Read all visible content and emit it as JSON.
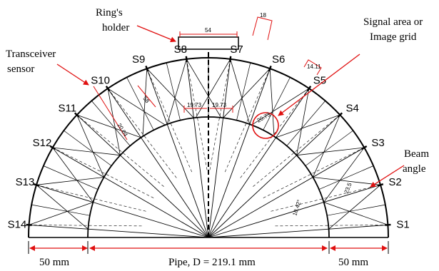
{
  "labels": {
    "rings_holder": [
      "Ring's",
      "holder"
    ],
    "transceiver": [
      "Transceiver",
      "sensor"
    ],
    "signal_area": [
      "Signal area or",
      "Image grid"
    ],
    "beam_angle": [
      "Beam",
      "angle"
    ],
    "left_dim": "50 mm",
    "pipe_dim": "Pipe, D = 219.1 mm",
    "right_dim": "50 mm"
  },
  "sensors": [
    "S1",
    "S2",
    "S3",
    "S4",
    "S5",
    "S6",
    "S7",
    "S8",
    "S9",
    "S10",
    "S11",
    "S12",
    "S13",
    "S14"
  ],
  "dimensions": {
    "top_width": "54",
    "s7_width": "18",
    "s6_width": "14.11",
    "left_chord": "19.73",
    "right_chord": "19.73",
    "slant_a": "58",
    "slant_b": "20.04",
    "arc_center": "20.73",
    "beam_right": "23.5",
    "angle_right": "10.42°"
  },
  "colors": {
    "line": "#000000",
    "arrow": "#e01010",
    "dimension": "#e01010",
    "highlight_circle": "#e01010"
  }
}
